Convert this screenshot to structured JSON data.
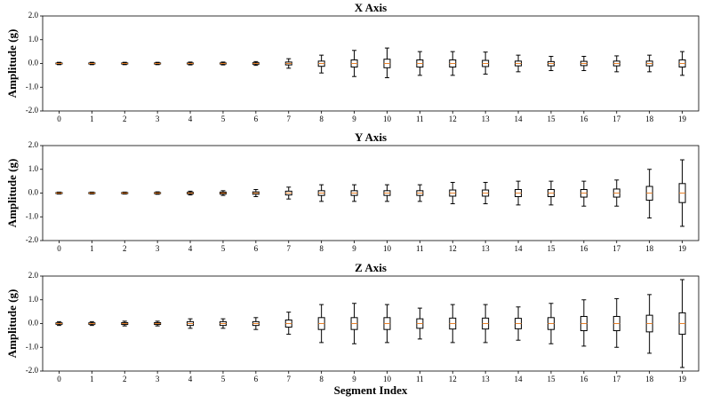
{
  "chart_data": [
    {
      "type": "box",
      "title": "X Axis",
      "ylabel": "Amplitude (g)",
      "categories": [
        "0",
        "1",
        "2",
        "3",
        "4",
        "5",
        "6",
        "7",
        "8",
        "9",
        "10",
        "11",
        "12",
        "13",
        "14",
        "15",
        "16",
        "17",
        "18",
        "19"
      ],
      "low": [
        -0.05,
        -0.05,
        -0.05,
        -0.05,
        -0.06,
        -0.06,
        -0.08,
        -0.2,
        -0.4,
        -0.55,
        -0.6,
        -0.5,
        -0.5,
        -0.45,
        -0.35,
        -0.3,
        -0.3,
        -0.35,
        -0.35,
        -0.5
      ],
      "q1": [
        -0.02,
        -0.02,
        -0.02,
        -0.02,
        -0.02,
        -0.02,
        -0.03,
        -0.06,
        -0.12,
        -0.15,
        -0.18,
        -0.15,
        -0.15,
        -0.13,
        -0.1,
        -0.1,
        -0.09,
        -0.1,
        -0.1,
        -0.15
      ],
      "median": [
        0,
        0,
        0,
        0,
        0,
        0,
        0,
        0,
        0,
        0,
        0,
        0,
        0,
        0,
        0,
        0,
        0,
        0,
        0,
        0
      ],
      "q3": [
        0.02,
        0.02,
        0.02,
        0.02,
        0.02,
        0.02,
        0.03,
        0.06,
        0.1,
        0.15,
        0.18,
        0.15,
        0.15,
        0.13,
        0.1,
        0.08,
        0.09,
        0.1,
        0.1,
        0.15
      ],
      "high": [
        0.05,
        0.05,
        0.05,
        0.05,
        0.06,
        0.06,
        0.08,
        0.2,
        0.35,
        0.55,
        0.65,
        0.5,
        0.5,
        0.48,
        0.35,
        0.3,
        0.3,
        0.32,
        0.35,
        0.5
      ],
      "ylim": [
        -2,
        2
      ],
      "yticks": [
        {
          "value": -2,
          "label": "-2.0"
        },
        {
          "value": -1,
          "label": "-1.0"
        },
        {
          "value": 0,
          "label": "0.0"
        },
        {
          "value": 1,
          "label": "1.0"
        },
        {
          "value": 2,
          "label": "2.0"
        }
      ],
      "color": "#000000",
      "median_color": "#e8812a"
    },
    {
      "type": "box",
      "title": "Y Axis",
      "ylabel": "Amplitude (g)",
      "categories": [
        "0",
        "1",
        "2",
        "3",
        "4",
        "5",
        "6",
        "7",
        "8",
        "9",
        "10",
        "11",
        "12",
        "13",
        "14",
        "15",
        "16",
        "17",
        "18",
        "19"
      ],
      "low": [
        -0.04,
        -0.04,
        -0.04,
        -0.05,
        -0.08,
        -0.1,
        -0.15,
        -0.25,
        -0.35,
        -0.35,
        -0.35,
        -0.35,
        -0.45,
        -0.45,
        -0.5,
        -0.5,
        -0.55,
        -0.55,
        -1.05,
        -1.4
      ],
      "q1": [
        -0.02,
        -0.02,
        -0.02,
        -0.02,
        -0.03,
        -0.04,
        -0.05,
        -0.08,
        -0.1,
        -0.1,
        -0.1,
        -0.1,
        -0.13,
        -0.13,
        -0.15,
        -0.15,
        -0.17,
        -0.17,
        -0.3,
        -0.4
      ],
      "median": [
        0,
        0,
        0,
        0,
        0,
        0,
        0,
        0,
        0,
        0,
        0,
        0,
        0,
        0,
        0,
        0,
        0,
        0,
        0,
        0
      ],
      "q3": [
        0.02,
        0.02,
        0.02,
        0.02,
        0.03,
        0.04,
        0.05,
        0.08,
        0.1,
        0.1,
        0.1,
        0.1,
        0.13,
        0.13,
        0.15,
        0.15,
        0.15,
        0.17,
        0.28,
        0.4
      ],
      "high": [
        0.04,
        0.04,
        0.04,
        0.05,
        0.08,
        0.1,
        0.15,
        0.25,
        0.35,
        0.35,
        0.35,
        0.35,
        0.45,
        0.45,
        0.5,
        0.5,
        0.5,
        0.55,
        1.0,
        1.4
      ],
      "ylim": [
        -2,
        2
      ],
      "yticks": [
        {
          "value": -2,
          "label": "-2.0"
        },
        {
          "value": -1,
          "label": "-1.0"
        },
        {
          "value": 0,
          "label": "0.0"
        },
        {
          "value": 1,
          "label": "1.0"
        },
        {
          "value": 2,
          "label": "2.0"
        }
      ],
      "color": "#000000",
      "median_color": "#e8812a"
    },
    {
      "type": "box",
      "title": "Z Axis",
      "ylabel": "Amplitude (g)",
      "xlabel": "Segment Index",
      "categories": [
        "0",
        "1",
        "2",
        "3",
        "4",
        "5",
        "6",
        "7",
        "8",
        "9",
        "10",
        "11",
        "12",
        "13",
        "14",
        "15",
        "16",
        "17",
        "18",
        "19"
      ],
      "low": [
        -0.08,
        -0.08,
        -0.1,
        -0.1,
        -0.2,
        -0.2,
        -0.25,
        -0.45,
        -0.8,
        -0.85,
        -0.8,
        -0.65,
        -0.8,
        -0.8,
        -0.7,
        -0.85,
        -0.95,
        -1.0,
        -1.25,
        -1.85
      ],
      "q1": [
        -0.03,
        -0.03,
        -0.04,
        -0.04,
        -0.08,
        -0.08,
        -0.08,
        -0.15,
        -0.25,
        -0.25,
        -0.25,
        -0.2,
        -0.23,
        -0.23,
        -0.22,
        -0.25,
        -0.3,
        -0.3,
        -0.35,
        -0.45
      ],
      "median": [
        0,
        0,
        0,
        0,
        0,
        0,
        0,
        0,
        0,
        0,
        0,
        0,
        0,
        0,
        0,
        0,
        0,
        0,
        0,
        0
      ],
      "q3": [
        0.03,
        0.03,
        0.04,
        0.04,
        0.08,
        0.08,
        0.08,
        0.15,
        0.25,
        0.25,
        0.25,
        0.2,
        0.23,
        0.23,
        0.22,
        0.25,
        0.3,
        0.3,
        0.35,
        0.45
      ],
      "high": [
        0.08,
        0.08,
        0.1,
        0.1,
        0.2,
        0.2,
        0.25,
        0.48,
        0.8,
        0.85,
        0.8,
        0.65,
        0.8,
        0.8,
        0.7,
        0.85,
        1.0,
        1.05,
        1.22,
        1.85
      ],
      "ylim": [
        -2,
        2
      ],
      "yticks": [
        {
          "value": -2,
          "label": "-2.0"
        },
        {
          "value": -1,
          "label": "-1.0"
        },
        {
          "value": 0,
          "label": "0.0"
        },
        {
          "value": 1,
          "label": "1.0"
        },
        {
          "value": 2,
          "label": "2.0"
        }
      ],
      "color": "#000000",
      "median_color": "#e8812a"
    }
  ]
}
